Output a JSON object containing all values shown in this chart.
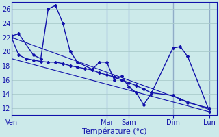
{
  "title": "Température (°c)",
  "bg_color": "#cceaea",
  "grid_color": "#aacccc",
  "line_color": "#1111aa",
  "ylim": [
    11,
    27
  ],
  "yticks": [
    12,
    14,
    16,
    18,
    20,
    22,
    24,
    26
  ],
  "day_labels": [
    "Ven",
    "Mar",
    "Sam",
    "Dim",
    "Lun"
  ],
  "day_tick_positions": [
    0,
    13,
    16,
    22,
    27
  ],
  "xmin": 0,
  "xmax": 28,
  "series1_x": [
    0,
    1,
    3,
    4,
    5,
    6,
    7,
    8,
    9,
    11,
    12,
    13,
    14,
    15,
    16,
    17,
    18,
    19,
    22,
    23,
    24,
    27
  ],
  "series1_y": [
    22.2,
    22.5,
    19.5,
    19.0,
    26.0,
    26.5,
    24.0,
    20.0,
    18.5,
    17.5,
    18.5,
    18.5,
    16.0,
    16.5,
    15.0,
    14.2,
    12.5,
    14.0,
    20.5,
    20.7,
    19.3,
    11.5
  ],
  "series2_x": [
    0,
    1,
    2,
    3,
    4,
    5,
    6,
    7,
    8,
    9,
    10,
    11,
    12,
    13,
    14,
    15,
    16,
    17,
    18,
    19,
    22,
    23,
    24,
    27
  ],
  "series2_y": [
    22.0,
    19.5,
    19.0,
    18.8,
    18.6,
    18.5,
    18.5,
    18.3,
    18.0,
    17.8,
    17.6,
    17.4,
    17.0,
    16.7,
    16.4,
    16.0,
    15.6,
    15.2,
    14.7,
    14.2,
    13.8,
    13.3,
    12.8,
    12.0
  ],
  "trend1_x": [
    0,
    27
  ],
  "trend1_y": [
    22.0,
    11.8
  ],
  "trend2_x": [
    0,
    27
  ],
  "trend2_y": [
    19.0,
    11.5
  ]
}
